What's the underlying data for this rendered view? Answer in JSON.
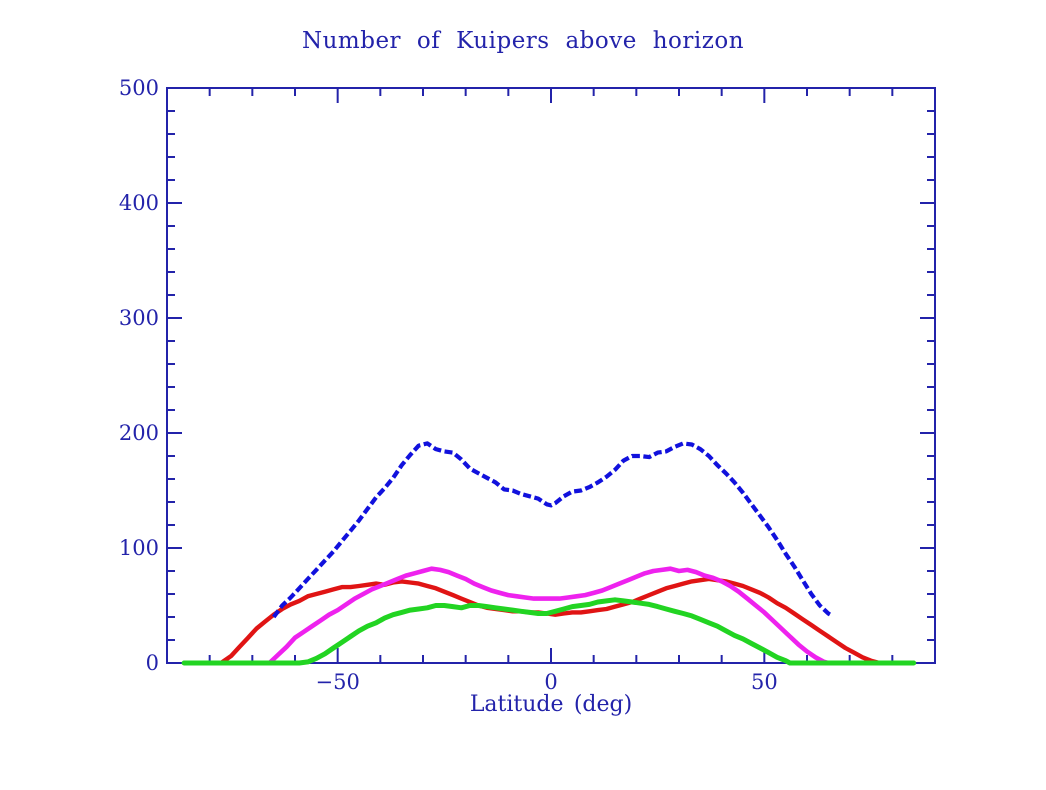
{
  "page": {
    "background_color": "#ffffff"
  },
  "chart_data": {
    "type": "line",
    "title": "Number of Kuipers above horizon",
    "xlabel": "Latitude (deg)",
    "ylabel": "",
    "xlim": [
      -90,
      90
    ],
    "ylim": [
      0,
      500
    ],
    "grid": false,
    "legend": null,
    "axis_color": "#2323aa",
    "text_color": "#2323aa",
    "x_major_ticks": [
      -50,
      0,
      50
    ],
    "x_minor_step": 10,
    "y_major_ticks": [
      0,
      100,
      200,
      300,
      400,
      500
    ],
    "y_minor_step": 20,
    "series": [
      {
        "name": "red-curve",
        "color": "#e01414",
        "dashed": false,
        "line_width": 4.4,
        "points": [
          [
            -77,
            1
          ],
          [
            -75,
            6
          ],
          [
            -73,
            14
          ],
          [
            -71,
            22
          ],
          [
            -69,
            30
          ],
          [
            -67,
            36
          ],
          [
            -65,
            42
          ],
          [
            -63,
            47
          ],
          [
            -61,
            51
          ],
          [
            -59,
            54
          ],
          [
            -57,
            58
          ],
          [
            -55,
            60
          ],
          [
            -53,
            62
          ],
          [
            -51,
            64
          ],
          [
            -49,
            66
          ],
          [
            -47,
            66
          ],
          [
            -45,
            67
          ],
          [
            -43,
            68
          ],
          [
            -41,
            69
          ],
          [
            -39,
            68
          ],
          [
            -37,
            70
          ],
          [
            -35,
            71
          ],
          [
            -33,
            70
          ],
          [
            -31,
            69
          ],
          [
            -29,
            67
          ],
          [
            -27,
            65
          ],
          [
            -25,
            62
          ],
          [
            -23,
            59
          ],
          [
            -21,
            56
          ],
          [
            -19,
            53
          ],
          [
            -17,
            50
          ],
          [
            -15,
            48
          ],
          [
            -13,
            47
          ],
          [
            -11,
            46
          ],
          [
            -9,
            45
          ],
          [
            -7,
            45
          ],
          [
            -5,
            44
          ],
          [
            -3,
            44
          ],
          [
            -1,
            43
          ],
          [
            1,
            42
          ],
          [
            3,
            43
          ],
          [
            5,
            44
          ],
          [
            7,
            44
          ],
          [
            9,
            45
          ],
          [
            11,
            46
          ],
          [
            13,
            47
          ],
          [
            15,
            49
          ],
          [
            17,
            51
          ],
          [
            19,
            53
          ],
          [
            21,
            56
          ],
          [
            23,
            59
          ],
          [
            25,
            62
          ],
          [
            27,
            65
          ],
          [
            29,
            67
          ],
          [
            31,
            69
          ],
          [
            33,
            71
          ],
          [
            35,
            72
          ],
          [
            37,
            73
          ],
          [
            39,
            72
          ],
          [
            41,
            71
          ],
          [
            43,
            69
          ],
          [
            45,
            67
          ],
          [
            47,
            64
          ],
          [
            49,
            61
          ],
          [
            51,
            57
          ],
          [
            53,
            52
          ],
          [
            55,
            48
          ],
          [
            57,
            43
          ],
          [
            59,
            38
          ],
          [
            61,
            33
          ],
          [
            63,
            28
          ],
          [
            65,
            23
          ],
          [
            67,
            18
          ],
          [
            69,
            13
          ],
          [
            71,
            9
          ],
          [
            73,
            5
          ],
          [
            75,
            2
          ],
          [
            77,
            0
          ]
        ]
      },
      {
        "name": "magenta-curve",
        "color": "#ee22ee",
        "dashed": false,
        "line_width": 4.6,
        "points": [
          [
            -66,
            0
          ],
          [
            -64,
            7
          ],
          [
            -62,
            14
          ],
          [
            -60,
            22
          ],
          [
            -58,
            27
          ],
          [
            -56,
            32
          ],
          [
            -54,
            37
          ],
          [
            -52,
            42
          ],
          [
            -50,
            46
          ],
          [
            -48,
            51
          ],
          [
            -46,
            56
          ],
          [
            -44,
            60
          ],
          [
            -42,
            64
          ],
          [
            -40,
            67
          ],
          [
            -38,
            70
          ],
          [
            -36,
            73
          ],
          [
            -34,
            76
          ],
          [
            -32,
            78
          ],
          [
            -30,
            80
          ],
          [
            -28,
            82
          ],
          [
            -26,
            81
          ],
          [
            -24,
            79
          ],
          [
            -22,
            76
          ],
          [
            -20,
            73
          ],
          [
            -18,
            69
          ],
          [
            -16,
            66
          ],
          [
            -14,
            63
          ],
          [
            -12,
            61
          ],
          [
            -10,
            59
          ],
          [
            -8,
            58
          ],
          [
            -6,
            57
          ],
          [
            -4,
            56
          ],
          [
            -2,
            56
          ],
          [
            0,
            56
          ],
          [
            2,
            56
          ],
          [
            4,
            57
          ],
          [
            6,
            58
          ],
          [
            8,
            59
          ],
          [
            10,
            61
          ],
          [
            12,
            63
          ],
          [
            14,
            66
          ],
          [
            16,
            69
          ],
          [
            18,
            72
          ],
          [
            20,
            75
          ],
          [
            22,
            78
          ],
          [
            24,
            80
          ],
          [
            26,
            81
          ],
          [
            28,
            82
          ],
          [
            30,
            80
          ],
          [
            32,
            81
          ],
          [
            34,
            79
          ],
          [
            36,
            76
          ],
          [
            38,
            74
          ],
          [
            40,
            71
          ],
          [
            42,
            67
          ],
          [
            44,
            62
          ],
          [
            46,
            56
          ],
          [
            48,
            50
          ],
          [
            50,
            44
          ],
          [
            52,
            37
          ],
          [
            54,
            30
          ],
          [
            56,
            23
          ],
          [
            58,
            16
          ],
          [
            60,
            10
          ],
          [
            62,
            5
          ],
          [
            64,
            1
          ],
          [
            65,
            0
          ]
        ]
      },
      {
        "name": "green-curve",
        "color": "#22d422",
        "dashed": false,
        "line_width": 5,
        "points": [
          [
            -86,
            0
          ],
          [
            -80,
            0
          ],
          [
            -74,
            0
          ],
          [
            -68,
            0
          ],
          [
            -63,
            0
          ],
          [
            -59,
            0
          ],
          [
            -57,
            1
          ],
          [
            -55,
            4
          ],
          [
            -53,
            8
          ],
          [
            -51,
            13
          ],
          [
            -49,
            18
          ],
          [
            -47,
            23
          ],
          [
            -45,
            28
          ],
          [
            -43,
            32
          ],
          [
            -41,
            35
          ],
          [
            -39,
            39
          ],
          [
            -37,
            42
          ],
          [
            -35,
            44
          ],
          [
            -33,
            46
          ],
          [
            -31,
            47
          ],
          [
            -29,
            48
          ],
          [
            -27,
            50
          ],
          [
            -25,
            50
          ],
          [
            -23,
            49
          ],
          [
            -21,
            48
          ],
          [
            -19,
            50
          ],
          [
            -17,
            50
          ],
          [
            -15,
            49
          ],
          [
            -13,
            48
          ],
          [
            -11,
            47
          ],
          [
            -9,
            46
          ],
          [
            -7,
            45
          ],
          [
            -5,
            44
          ],
          [
            -3,
            43
          ],
          [
            -1,
            43
          ],
          [
            1,
            45
          ],
          [
            3,
            47
          ],
          [
            5,
            49
          ],
          [
            7,
            50
          ],
          [
            9,
            51
          ],
          [
            11,
            53
          ],
          [
            13,
            54
          ],
          [
            15,
            55
          ],
          [
            17,
            54
          ],
          [
            19,
            53
          ],
          [
            21,
            52
          ],
          [
            23,
            51
          ],
          [
            25,
            49
          ],
          [
            27,
            47
          ],
          [
            29,
            45
          ],
          [
            31,
            43
          ],
          [
            33,
            41
          ],
          [
            35,
            38
          ],
          [
            37,
            35
          ],
          [
            39,
            32
          ],
          [
            41,
            28
          ],
          [
            43,
            24
          ],
          [
            45,
            21
          ],
          [
            47,
            17
          ],
          [
            49,
            13
          ],
          [
            51,
            9
          ],
          [
            53,
            5
          ],
          [
            55,
            2
          ],
          [
            56,
            0
          ],
          [
            60,
            0
          ],
          [
            66,
            0
          ],
          [
            72,
            0
          ],
          [
            78,
            0
          ],
          [
            85,
            0
          ]
        ]
      },
      {
        "name": "blue-curve",
        "color": "#1111dd",
        "dashed": true,
        "line_width": 4.2,
        "points": [
          [
            -65,
            40
          ],
          [
            -63,
            50
          ],
          [
            -61,
            57
          ],
          [
            -59,
            65
          ],
          [
            -57,
            73
          ],
          [
            -55,
            81
          ],
          [
            -53,
            89
          ],
          [
            -51,
            97
          ],
          [
            -49,
            106
          ],
          [
            -47,
            115
          ],
          [
            -45,
            124
          ],
          [
            -43,
            134
          ],
          [
            -41,
            144
          ],
          [
            -39,
            152
          ],
          [
            -37,
            161
          ],
          [
            -35,
            172
          ],
          [
            -33,
            181
          ],
          [
            -31,
            189
          ],
          [
            -29,
            191
          ],
          [
            -27,
            186
          ],
          [
            -25,
            184
          ],
          [
            -23,
            183
          ],
          [
            -21,
            177
          ],
          [
            -19,
            169
          ],
          [
            -17,
            165
          ],
          [
            -15,
            161
          ],
          [
            -13,
            157
          ],
          [
            -11,
            151
          ],
          [
            -9,
            150
          ],
          [
            -7,
            147
          ],
          [
            -5,
            145
          ],
          [
            -3,
            143
          ],
          [
            -1,
            138
          ],
          [
            0,
            137
          ],
          [
            1,
            139
          ],
          [
            3,
            145
          ],
          [
            5,
            149
          ],
          [
            7,
            150
          ],
          [
            9,
            153
          ],
          [
            11,
            157
          ],
          [
            13,
            162
          ],
          [
            15,
            168
          ],
          [
            17,
            176
          ],
          [
            19,
            180
          ],
          [
            21,
            180
          ],
          [
            23,
            179
          ],
          [
            25,
            183
          ],
          [
            27,
            184
          ],
          [
            29,
            188
          ],
          [
            31,
            191
          ],
          [
            33,
            190
          ],
          [
            35,
            186
          ],
          [
            37,
            180
          ],
          [
            39,
            172
          ],
          [
            41,
            165
          ],
          [
            43,
            157
          ],
          [
            45,
            148
          ],
          [
            47,
            138
          ],
          [
            49,
            128
          ],
          [
            51,
            118
          ],
          [
            53,
            107
          ],
          [
            55,
            95
          ],
          [
            57,
            84
          ],
          [
            59,
            72
          ],
          [
            61,
            60
          ],
          [
            63,
            50
          ],
          [
            65,
            43
          ],
          [
            66,
            41
          ]
        ]
      }
    ]
  }
}
